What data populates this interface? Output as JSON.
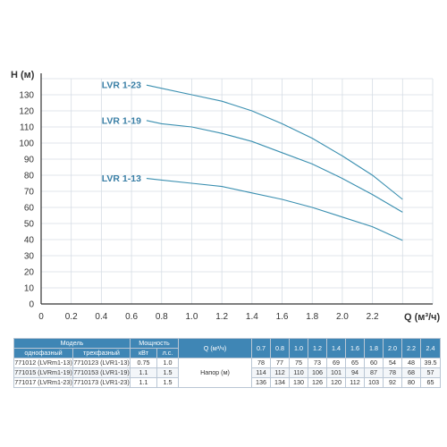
{
  "chart_data": {
    "type": "line",
    "title": "",
    "xlabel": "Q (м³/ч)",
    "ylabel": "H (м)",
    "xlim": [
      0,
      2.6
    ],
    "ylim": [
      0,
      140
    ],
    "xticks": [
      "0",
      "0.2",
      "0.4",
      "0.6",
      "0.8",
      "1.0",
      "1.2",
      "1.4",
      "1.6",
      "1.8",
      "2.0",
      "2.2"
    ],
    "yticks": [
      "0",
      "10",
      "20",
      "30",
      "40",
      "50",
      "60",
      "70",
      "80",
      "90",
      "100",
      "110",
      "120",
      "130"
    ],
    "grid": true,
    "line_color": "#3a8fb0",
    "series": [
      {
        "name": "LVR 1-23",
        "x": [
          0.7,
          0.8,
          1.0,
          1.2,
          1.4,
          1.6,
          1.8,
          2.0,
          2.2,
          2.4
        ],
        "y": [
          136,
          134,
          130,
          126,
          120,
          112,
          103,
          92,
          80,
          65
        ]
      },
      {
        "name": "LVR 1-19",
        "x": [
          0.7,
          0.8,
          1.0,
          1.2,
          1.4,
          1.6,
          1.8,
          2.0,
          2.2,
          2.4
        ],
        "y": [
          114,
          112,
          110,
          106,
          101,
          94,
          87,
          78,
          68,
          57
        ]
      },
      {
        "name": "LVR 1-13",
        "x": [
          0.7,
          0.8,
          1.0,
          1.2,
          1.4,
          1.6,
          1.8,
          2.0,
          2.2,
          2.4
        ],
        "y": [
          78,
          77,
          75,
          73,
          69,
          65,
          60,
          54,
          48,
          39.5
        ]
      }
    ]
  },
  "table": {
    "model_header": "Модель",
    "single_phase_header": "однофазный",
    "three_phase_header": "трехфазный",
    "power_header": "Мощность",
    "kw_header": "кВт",
    "hp_header": "л.с.",
    "q_header": "Q (м³/ч)",
    "q_values": [
      "0.7",
      "0.8",
      "1.0",
      "1.2",
      "1.4",
      "1.6",
      "1.8",
      "2.0",
      "2.2",
      "2.4"
    ],
    "head_label": "Напор (м)",
    "rows": [
      {
        "single": "771012 (LVRm1-13)",
        "three": "7710123 (LVR1-13)",
        "kw": "0.75",
        "hp": "1.0",
        "values": [
          "78",
          "77",
          "75",
          "73",
          "69",
          "65",
          "60",
          "54",
          "48",
          "39.5"
        ]
      },
      {
        "single": "771015 (LVRm1-19)",
        "three": "7710153 (LVR1-19)",
        "kw": "1.1",
        "hp": "1.5",
        "values": [
          "114",
          "112",
          "110",
          "106",
          "101",
          "94",
          "87",
          "78",
          "68",
          "57"
        ]
      },
      {
        "single": "771017 (LVRm1-23)",
        "three": "7710173 (LVR1-23)",
        "kw": "1.1",
        "hp": "1.5",
        "values": [
          "136",
          "134",
          "130",
          "126",
          "120",
          "112",
          "103",
          "92",
          "80",
          "65"
        ]
      }
    ]
  }
}
